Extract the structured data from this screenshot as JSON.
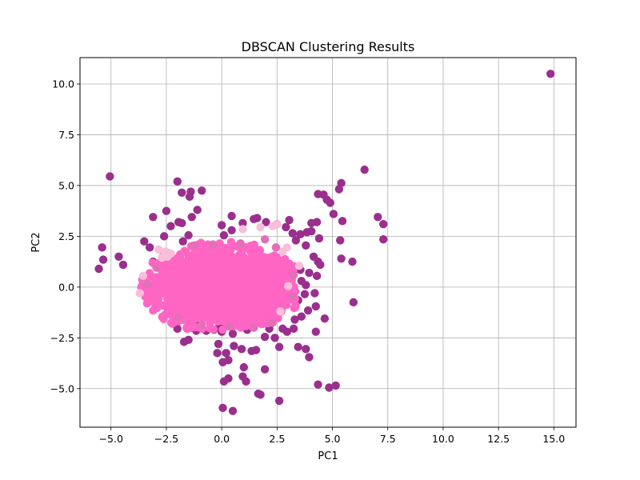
{
  "chart_data": {
    "type": "scatter",
    "title": "DBSCAN Clustering Results",
    "xlabel": "PC1",
    "ylabel": "PC2",
    "xlim": [
      -6.4,
      16.0
    ],
    "ylim": [
      -6.9,
      11.3
    ],
    "xticks": [
      -5.0,
      -2.5,
      0.0,
      2.5,
      5.0,
      7.5,
      10.0,
      12.5,
      15.0
    ],
    "xtick_labels": [
      "−5.0",
      "−2.5",
      "0.0",
      "2.5",
      "5.0",
      "7.5",
      "10.0",
      "12.5",
      "15.0"
    ],
    "yticks": [
      -5.0,
      -2.5,
      0.0,
      2.5,
      5.0,
      7.5,
      10.0
    ],
    "ytick_labels": [
      "−5.0",
      "−2.5",
      "0.0",
      "2.5",
      "5.0",
      "7.5",
      "10.0"
    ],
    "grid": true,
    "legend": "none",
    "colors": {
      "noise": "#9a2f8e",
      "main_cluster": "#ff66c4",
      "light_cluster": "#f7bfd9",
      "mid_cluster": "#e36fb7"
    },
    "series": [
      {
        "color": "#9a2f8e",
        "points": [
          [
            14.85,
            10.5
          ],
          [
            -5.05,
            5.45
          ],
          [
            6.45,
            5.78
          ],
          [
            5.4,
            5.12
          ],
          [
            5.3,
            4.82
          ],
          [
            4.35,
            4.58
          ],
          [
            4.6,
            4.55
          ],
          [
            4.75,
            4.3
          ],
          [
            4.9,
            4.15
          ],
          [
            -2.0,
            5.2
          ],
          [
            -1.8,
            4.65
          ],
          [
            -1.4,
            4.7
          ],
          [
            -1.45,
            4.45
          ],
          [
            -0.9,
            4.75
          ],
          [
            -1.1,
            3.8
          ],
          [
            -2.5,
            3.75
          ],
          [
            -1.35,
            3.45
          ],
          [
            -3.1,
            3.45
          ],
          [
            -2.3,
            3.0
          ],
          [
            -1.8,
            3.15
          ],
          [
            -1.95,
            3.2
          ],
          [
            0.0,
            3.05
          ],
          [
            0.45,
            3.5
          ],
          [
            0.95,
            3.15
          ],
          [
            1.45,
            3.35
          ],
          [
            1.6,
            3.4
          ],
          [
            2.0,
            3.2
          ],
          [
            2.5,
            3.1
          ],
          [
            3.05,
            3.3
          ],
          [
            2.9,
            2.95
          ],
          [
            4.3,
            3.2
          ],
          [
            4.05,
            3.15
          ],
          [
            5.05,
            3.6
          ],
          [
            5.45,
            3.25
          ],
          [
            7.05,
            3.45
          ],
          [
            7.3,
            3.1
          ],
          [
            7.3,
            2.35
          ],
          [
            5.35,
            2.3
          ],
          [
            4.4,
            2.4
          ],
          [
            3.2,
            2.65
          ],
          [
            3.55,
            2.6
          ],
          [
            3.85,
            2.7
          ],
          [
            4.05,
            2.75
          ],
          [
            3.35,
            2.3
          ],
          [
            3.8,
            2.05
          ],
          [
            -2.6,
            2.5
          ],
          [
            -1.5,
            2.55
          ],
          [
            -1.75,
            2.25
          ],
          [
            0.1,
            2.55
          ],
          [
            0.45,
            2.8
          ],
          [
            -5.4,
            1.95
          ],
          [
            -4.65,
            1.5
          ],
          [
            -5.35,
            1.35
          ],
          [
            -4.45,
            1.1
          ],
          [
            -5.55,
            0.9
          ],
          [
            -3.5,
            2.25
          ],
          [
            -3.25,
            1.95
          ],
          [
            -3.1,
            1.25
          ],
          [
            4.15,
            1.5
          ],
          [
            4.35,
            1.25
          ],
          [
            4.45,
            1.1
          ],
          [
            5.4,
            1.4
          ],
          [
            5.9,
            1.25
          ],
          [
            3.95,
            0.7
          ],
          [
            3.55,
            0.85
          ],
          [
            3.6,
            0.3
          ],
          [
            3.8,
            0.1
          ],
          [
            4.3,
            0.55
          ],
          [
            5.95,
            -0.75
          ],
          [
            4.2,
            -0.3
          ],
          [
            3.75,
            -0.35
          ],
          [
            3.45,
            -0.65
          ],
          [
            4.25,
            -0.95
          ],
          [
            3.9,
            -1.15
          ],
          [
            4.65,
            -1.55
          ],
          [
            3.6,
            -1.45
          ],
          [
            3.3,
            -1.6
          ],
          [
            4.25,
            -2.2
          ],
          [
            3.25,
            -2.05
          ],
          [
            2.95,
            -2.2
          ],
          [
            2.75,
            -2.05
          ],
          [
            3.45,
            -2.95
          ],
          [
            3.8,
            -3.05
          ],
          [
            3.95,
            -3.45
          ],
          [
            2.6,
            -2.95
          ],
          [
            2.4,
            -2.5
          ],
          [
            1.95,
            -2.45
          ],
          [
            1.55,
            -3.1
          ],
          [
            1.35,
            -3.15
          ],
          [
            0.9,
            -3.05
          ],
          [
            0.55,
            -2.9
          ],
          [
            0.2,
            -3.25
          ],
          [
            -0.2,
            -3.25
          ],
          [
            -0.15,
            -2.8
          ],
          [
            0.5,
            -2.3
          ],
          [
            0.0,
            -2.2
          ],
          [
            -0.35,
            -2.1
          ],
          [
            -1.5,
            -2.6
          ],
          [
            -1.7,
            -2.7
          ],
          [
            -1.15,
            -2.15
          ],
          [
            -2.45,
            -1.25
          ],
          [
            -2.0,
            -2.05
          ],
          [
            0.05,
            -3.7
          ],
          [
            0.3,
            -3.6
          ],
          [
            1.0,
            -3.95
          ],
          [
            1.95,
            -4.05
          ],
          [
            0.3,
            -4.5
          ],
          [
            0.1,
            -4.65
          ],
          [
            1.1,
            -4.65
          ],
          [
            0.95,
            -4.4
          ],
          [
            1.65,
            -5.25
          ],
          [
            1.75,
            -5.3
          ],
          [
            2.6,
            -5.6
          ],
          [
            0.05,
            -5.95
          ],
          [
            0.5,
            -6.1
          ],
          [
            4.35,
            -4.8
          ],
          [
            4.85,
            -4.95
          ],
          [
            5.15,
            -4.85
          ],
          [
            -0.1,
            -1.95
          ],
          [
            1.15,
            -2.1
          ],
          [
            2.15,
            -2.05
          ],
          [
            -0.7,
            -2.15
          ],
          [
            1.5,
            -1.7
          ],
          [
            -1.2,
            -1.85
          ]
        ]
      },
      {
        "color": "#f7bfd9",
        "points": [
          [
            -2.85,
            1.85
          ],
          [
            -2.55,
            1.75
          ],
          [
            -2.3,
            1.65
          ],
          [
            -2.7,
            1.45
          ],
          [
            -2.45,
            1.5
          ],
          [
            2.5,
            3.1
          ],
          [
            2.3,
            3.0
          ],
          [
            1.75,
            2.95
          ],
          [
            0.95,
            2.85
          ],
          [
            2.95,
            1.95
          ],
          [
            2.75,
            1.75
          ],
          [
            -3.55,
            0.55
          ],
          [
            -3.7,
            -0.3
          ],
          [
            3.5,
            1.05
          ],
          [
            3.0,
            0.05
          ],
          [
            2.65,
            -1.2
          ]
        ]
      },
      {
        "color": "#e36fb7",
        "points": [
          [
            -1.25,
            2.05
          ],
          [
            -0.4,
            2.1
          ],
          [
            0.85,
            2.15
          ],
          [
            1.95,
            2.35
          ],
          [
            2.45,
            1.95
          ],
          [
            -1.95,
            -1.5
          ],
          [
            -0.9,
            -1.85
          ],
          [
            0.35,
            -1.95
          ],
          [
            1.45,
            -2.0
          ],
          [
            2.25,
            -1.75
          ],
          [
            -2.95,
            0.95
          ],
          [
            -3.35,
            0.15
          ],
          [
            3.25,
            0.6
          ],
          [
            3.2,
            -0.5
          ]
        ]
      }
    ],
    "main_cluster": {
      "color": "#ff66c4",
      "center": [
        0.0,
        0.0
      ],
      "spread": [
        1.55,
        0.95
      ],
      "count": 2200,
      "extent_x": [
        -3.9,
        3.35
      ],
      "extent_y": [
        -2.1,
        2.35
      ]
    }
  }
}
